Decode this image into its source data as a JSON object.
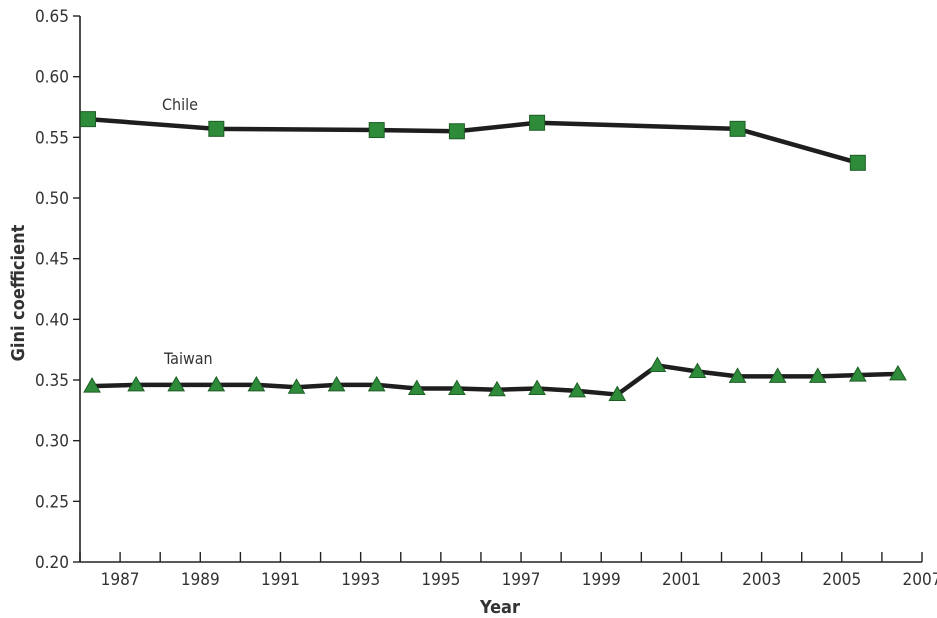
{
  "chart_data": {
    "type": "line",
    "title": "",
    "xlabel": "Year",
    "ylabel": "Gini coefficient",
    "xlim": [
      1986,
      2007
    ],
    "ylim": [
      0.2,
      0.65
    ],
    "x_tick_labels": [
      "1987",
      "1989",
      "1991",
      "1993",
      "1995",
      "1997",
      "1999",
      "2001",
      "2003",
      "2005",
      "2007"
    ],
    "y_tick_labels": [
      "0.20",
      "0.25",
      "0.30",
      "0.35",
      "0.40",
      "0.45",
      "0.50",
      "0.55",
      "0.60",
      "0.65"
    ],
    "grid": false,
    "legend": "none",
    "series": [
      {
        "name": "Chile",
        "marker": "square",
        "color": "#2e8b3a",
        "line_color": "#1e1e1e",
        "x": [
          1986.2,
          1989.4,
          1993.4,
          1995.4,
          1997.4,
          2002.4,
          2005.4
        ],
        "values": [
          0.565,
          0.557,
          0.556,
          0.555,
          0.562,
          0.557,
          0.529
        ]
      },
      {
        "name": "Taiwan",
        "marker": "triangle",
        "color": "#2e8b3a",
        "line_color": "#1e1e1e",
        "x": [
          1986.3,
          1987.4,
          1988.4,
          1989.4,
          1990.4,
          1991.4,
          1992.4,
          1993.4,
          1994.4,
          1995.4,
          1996.4,
          1997.4,
          1998.4,
          1999.4,
          2000.4,
          2001.4,
          2002.4,
          2003.4,
          2004.4,
          2005.4,
          2006.4
        ],
        "values": [
          0.345,
          0.346,
          0.346,
          0.346,
          0.346,
          0.344,
          0.346,
          0.346,
          0.343,
          0.343,
          0.342,
          0.343,
          0.341,
          0.338,
          0.362,
          0.357,
          0.353,
          0.353,
          0.353,
          0.354,
          0.355
        ]
      }
    ]
  }
}
